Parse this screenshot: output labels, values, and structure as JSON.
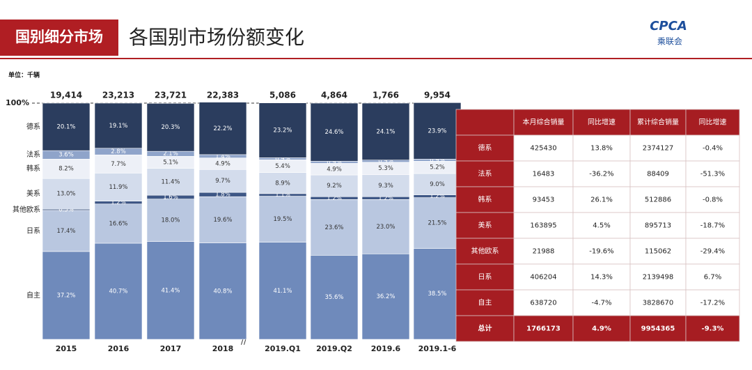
{
  "header": {
    "tag": "国别细分市场",
    "title": "各国别市场份额变化",
    "logo": "CPCA",
    "logo_sub": "乘联会",
    "unit": "单位：千辆"
  },
  "chart_data": {
    "type": "stacked_bar",
    "categories": [
      "2015",
      "2016",
      "2017",
      "2018",
      "2019.Q1",
      "2019.Q2",
      "2019.6",
      "2019.1-6"
    ],
    "ylim": [
      0,
      100
    ],
    "yticks": [
      {
        "value": 100,
        "label": "100%"
      }
    ],
    "totals": {
      "values": [
        19414,
        23213,
        23721,
        22383,
        5086,
        4864,
        1766,
        9954
      ],
      "value_labels": [
        "19,414",
        "23,213",
        "23,721",
        "22,383",
        "5,086",
        "4,864",
        "1,766",
        "9,954"
      ]
    },
    "series": [
      {
        "name": "自主",
        "color": "#6f8abb",
        "values": [
          37.2,
          40.7,
          41.4,
          40.8,
          41.1,
          35.6,
          36.2,
          38.5
        ],
        "value_labels": [
          "37.2%",
          "40.7%",
          "41.4%",
          "40.8%",
          "41.1%",
          "35.6%",
          "36.2%",
          "38.5%"
        ]
      },
      {
        "name": "日系",
        "color": "#b9c7e0",
        "values": [
          17.4,
          16.6,
          18.0,
          19.6,
          19.5,
          23.6,
          23.0,
          21.5
        ],
        "value_labels": [
          "17.4%",
          "16.6%",
          "18.0%",
          "19.6%",
          "19.5%",
          "23.6%",
          "23.0%",
          "21.5%"
        ]
      },
      {
        "name": "其他欧系",
        "color": "#3e5786",
        "values": [
          0.5,
          1.2,
          1.6,
          1.8,
          1.1,
          1.2,
          1.2,
          1.2
        ],
        "value_labels": [
          "0.5%",
          "1.2%",
          "1.6%",
          "1.8%",
          "1.1%",
          "1.2%",
          "1.2%",
          "1.2%"
        ]
      },
      {
        "name": "美系",
        "color": "#d3dcec",
        "values": [
          13.0,
          11.9,
          11.4,
          9.7,
          8.9,
          9.2,
          9.3,
          9.0
        ],
        "value_labels": [
          "13.0%",
          "11.9%",
          "11.4%",
          "9.7%",
          "8.9%",
          "9.2%",
          "9.3%",
          "9.0%"
        ]
      },
      {
        "name": "韩系",
        "color": "#edf0f7",
        "values": [
          8.2,
          7.7,
          5.1,
          4.9,
          5.4,
          4.9,
          5.3,
          5.2
        ],
        "value_labels": [
          "8.2%",
          "7.7%",
          "5.1%",
          "4.9%",
          "5.4%",
          "4.9%",
          "5.3%",
          "5.2%"
        ]
      },
      {
        "name": "法系",
        "color": "#8fa4ca",
        "values": [
          3.6,
          2.8,
          2.1,
          1.4,
          0.9,
          0.9,
          0.9,
          0.9
        ],
        "value_labels": [
          "3.6%",
          "2.8%",
          "2.1%",
          "1.4%",
          "0.9%",
          "0.9%",
          "0.9%",
          "0.9%"
        ]
      },
      {
        "name": "德系",
        "color": "#2b3d5e",
        "values": [
          20.1,
          19.1,
          20.3,
          22.2,
          23.2,
          24.6,
          24.1,
          23.9
        ],
        "value_labels": [
          "20.1%",
          "19.1%",
          "20.3%",
          "22.2%",
          "23.2%",
          "24.6%",
          "24.1%",
          "23.9%"
        ]
      }
    ]
  },
  "table": {
    "columns": [
      "本月综合销量",
      "同比增速",
      "累计综合销量",
      "同比增速"
    ],
    "rows": [
      [
        "德系",
        "425430",
        "13.8%",
        "2374127",
        "-0.4%"
      ],
      [
        "法系",
        "16483",
        "-36.2%",
        "88409",
        "-51.3%"
      ],
      [
        "韩系",
        "93453",
        "26.1%",
        "512886",
        "-0.8%"
      ],
      [
        "美系",
        "163895",
        "4.5%",
        "895713",
        "-18.7%"
      ],
      [
        "其他欧系",
        "21988",
        "-19.6%",
        "115062",
        "-29.4%"
      ],
      [
        "日系",
        "406204",
        "14.3%",
        "2139498",
        "6.7%"
      ],
      [
        "自主",
        "638720",
        "-4.7%",
        "3828670",
        "-17.2%"
      ]
    ],
    "total": [
      "总计",
      "1766173",
      "4.9%",
      "9954365",
      "-9.3%"
    ]
  }
}
